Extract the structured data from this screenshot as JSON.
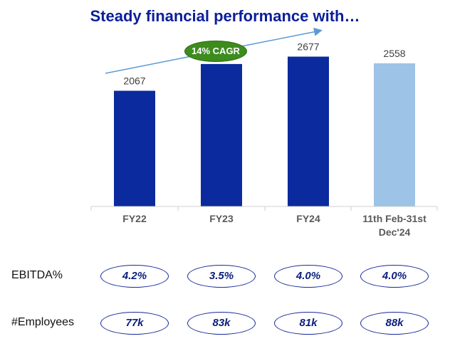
{
  "title": "Steady financial performance with…",
  "cagr_label": "14% CAGR",
  "colors": {
    "bar_actual": "#0a2a9e",
    "bar_partial": "#9dc3e6",
    "title": "#0b1f9a",
    "cagr_badge": "#3d8c1e",
    "arrow": "#5b9bd5"
  },
  "chart_data": {
    "type": "bar",
    "categories": [
      "FY22",
      "FY23",
      "FY24",
      "11th Feb-31st Dec'24"
    ],
    "values": [
      2067,
      2545,
      2677,
      2558
    ],
    "ylim": [
      0,
      2900
    ],
    "grid": false,
    "title": "Steady financial performance with…",
    "annotations": [
      "14% CAGR"
    ]
  },
  "metrics": [
    {
      "label": "EBITDA%",
      "values": [
        "4.2%",
        "3.5%",
        "4.0%",
        "4.0%"
      ]
    },
    {
      "label": "#Employees",
      "values": [
        "77k",
        "83k",
        "81k",
        "88k"
      ]
    }
  ]
}
